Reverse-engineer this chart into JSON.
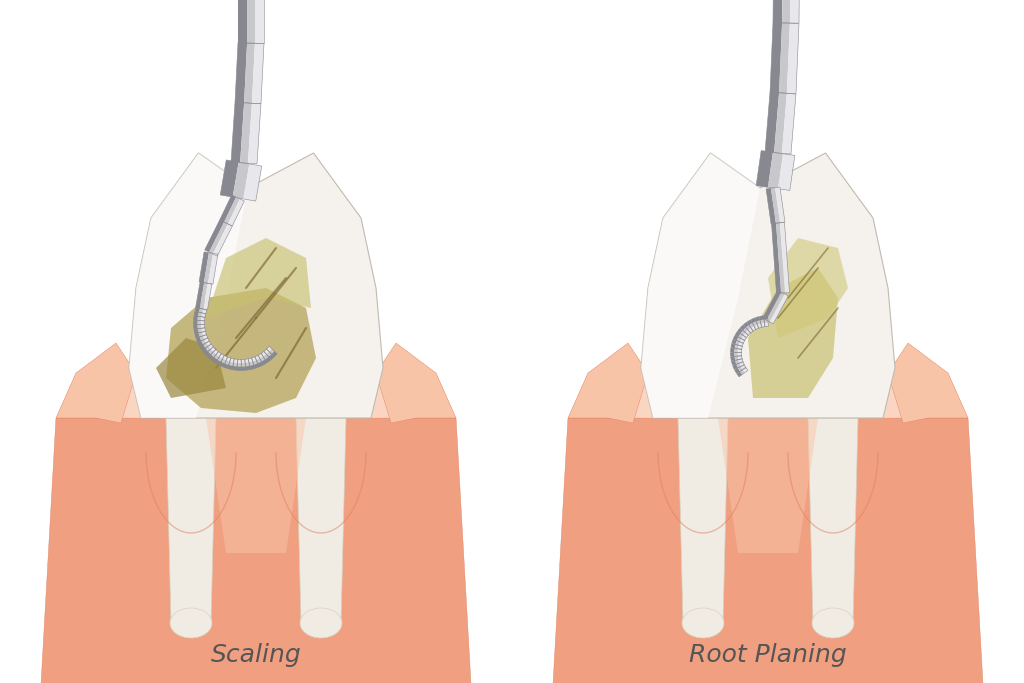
{
  "background_color": "#ffffff",
  "label_left": "Scaling",
  "label_right": "Root Planing",
  "label_color": "#555555",
  "label_fontsize": 18,
  "tooth_white": "#f5f2ee",
  "tooth_highlight": "#ffffff",
  "tooth_shadow": "#ddd8cc",
  "gum_base": "#f0a080",
  "gum_light": "#f8c4a8",
  "gum_dark": "#e08060",
  "gum_pink": "#f5b090",
  "tartar_main": "#c8b870",
  "tartar_dark": "#8a7030",
  "tartar_light": "#ddd090",
  "root_white": "#f0ece4",
  "tool_mid": "#c8c8cc",
  "tool_light": "#e8e8ec",
  "tool_dark": "#888890",
  "tool_shadow": "#aaaaaa"
}
